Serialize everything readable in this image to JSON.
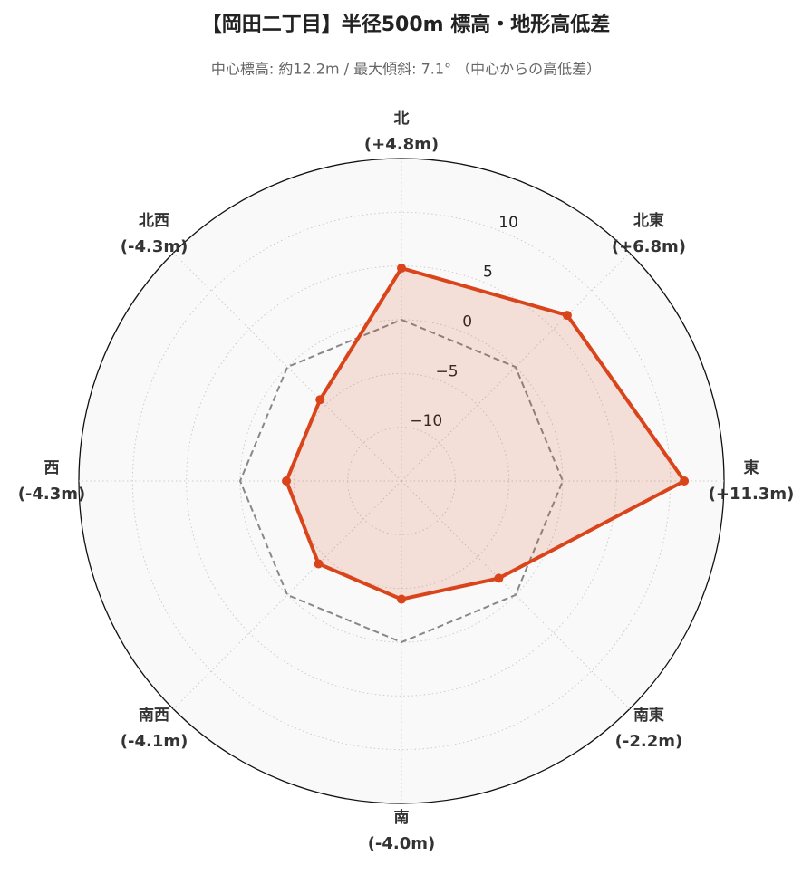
{
  "chart_data": {
    "type": "radar",
    "title": "【岡田二丁目】半径500m 標高・地形高低差",
    "subtitle": "中心標高: 約12.2m / 最大傾斜: 7.1° （中心からの高低差）",
    "categories": [
      "北",
      "北東",
      "東",
      "南東",
      "南",
      "南西",
      "西",
      "北西"
    ],
    "values": [
      4.8,
      6.8,
      11.3,
      -2.2,
      -4.0,
      -4.1,
      -4.3,
      -4.3
    ],
    "value_labels": [
      "(+4.8m)",
      "(+6.8m)",
      "(+11.3m)",
      "(-2.2m)",
      "(-4.0m)",
      "(-4.1m)",
      "(-4.3m)",
      "(-4.3m)"
    ],
    "color": "#d9441a",
    "reference_line": 0,
    "ylim": [
      -15,
      15
    ],
    "yticks": [
      {
        "value": -10,
        "label": "−10"
      },
      {
        "value": -5,
        "label": "−5"
      },
      0,
      5,
      10
    ],
    "grid": true
  }
}
